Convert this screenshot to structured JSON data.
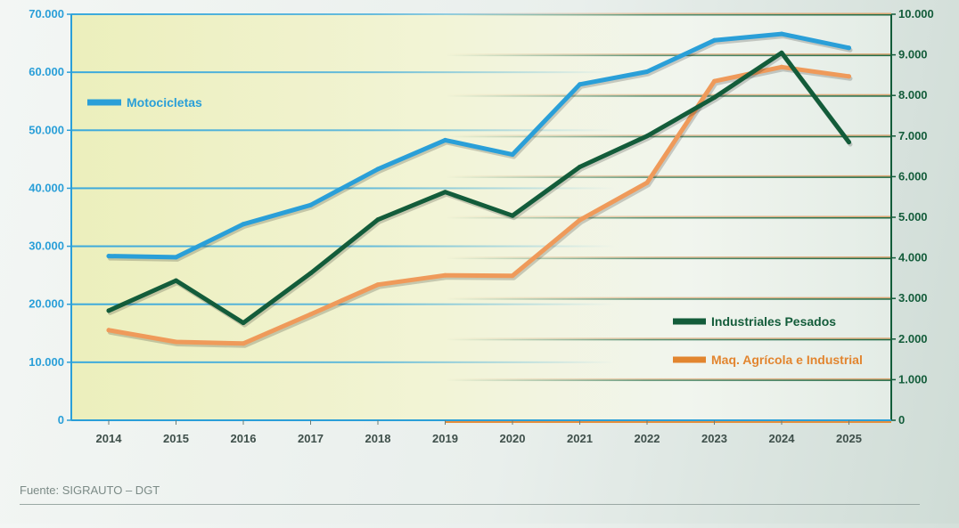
{
  "chart_data": {
    "type": "line",
    "categories": [
      "2014",
      "2015",
      "2016",
      "2017",
      "2018",
      "2019",
      "2020",
      "2021",
      "2022",
      "2023",
      "2024",
      "2025"
    ],
    "left_axis": {
      "ylim": [
        0,
        70000
      ],
      "ticks": [
        0,
        10000,
        20000,
        30000,
        40000,
        50000,
        60000,
        70000
      ],
      "tick_labels": [
        "0",
        "10.000",
        "20.000",
        "30.000",
        "40.000",
        "50.000",
        "60.000",
        "70.000"
      ],
      "color": "#2a9fd8"
    },
    "right_axis": {
      "ylim": [
        0,
        10000
      ],
      "ticks": [
        0,
        1000,
        2000,
        3000,
        4000,
        5000,
        6000,
        7000,
        8000,
        9000,
        10000
      ],
      "tick_labels": [
        "0",
        "1.000",
        "2.000",
        "3.000",
        "4.000",
        "5.000",
        "6.000",
        "7.000",
        "8.000",
        "9.000",
        "10.000"
      ],
      "color": "#135c3a"
    },
    "series": [
      {
        "name": "Motocicletas",
        "axis": "left",
        "color": "#2a9fd8",
        "values": [
          28300,
          28100,
          33800,
          37100,
          43300,
          48300,
          45800,
          57900,
          60100,
          65500,
          66600,
          64200
        ]
      },
      {
        "name": "Industriales Pesados",
        "axis": "right",
        "color": "#135c3a",
        "values": [
          2700,
          3440,
          2400,
          3620,
          4940,
          5620,
          5040,
          6240,
          7000,
          7950,
          9050,
          6850
        ]
      },
      {
        "name": "Maq. Agrícola e Industrial",
        "axis": "right",
        "color": "#ef9a5a",
        "values": [
          2220,
          1930,
          1890,
          2610,
          3340,
          3570,
          3560,
          4930,
          5850,
          8350,
          8700,
          8470
        ]
      }
    ],
    "legend_swatch_colors": [
      "#2a9fd8",
      "#135c3a",
      "#e2852f"
    ],
    "grid": true
  },
  "footer": {
    "source": "Fuente: SIGRAUTO – DGT"
  }
}
